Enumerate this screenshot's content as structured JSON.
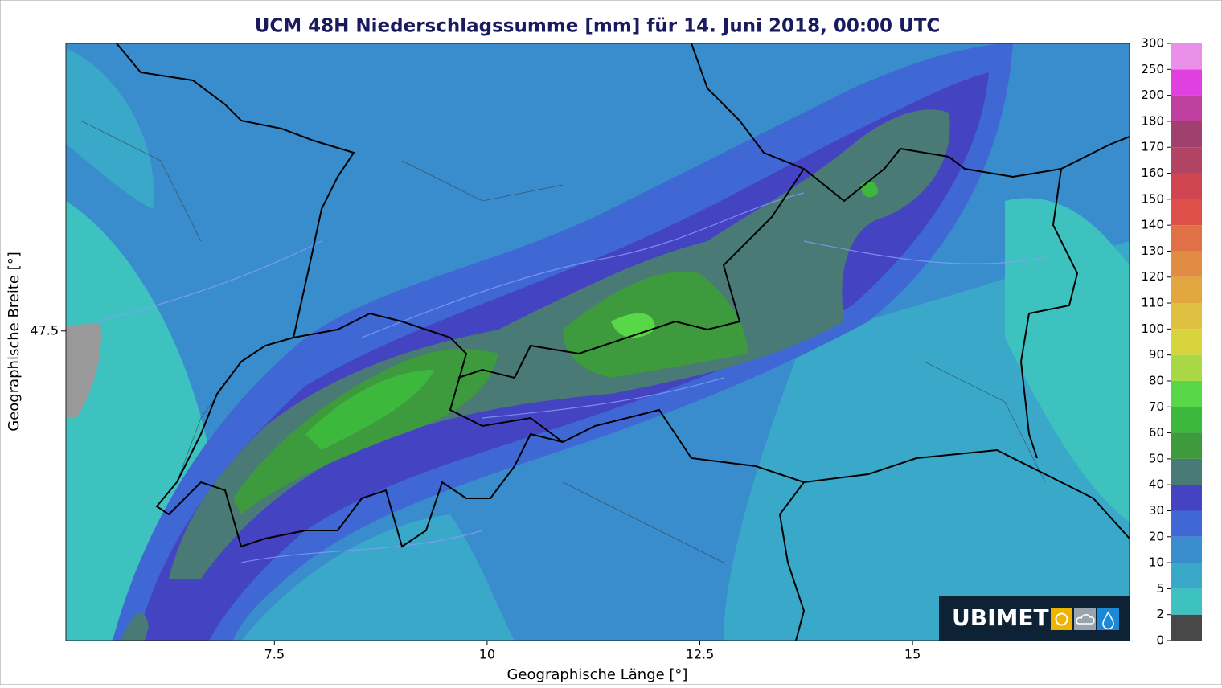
{
  "map": {
    "title": "UCM 48H Niederschlagssumme [mm] für 14. Juni 2018, 00:00 UTC",
    "xlabel": "Geographische Länge [°]",
    "ylabel": "Geographische Breite [°]",
    "xlim": [
      5.05,
      17.55
    ],
    "ylim": [
      43.85,
      50.89
    ],
    "xticks": [
      7.5,
      10,
      12.5,
      15
    ],
    "yticks": [
      47.5
    ]
  },
  "colorbar": {
    "levels": [
      0,
      2,
      5,
      10,
      20,
      30,
      40,
      50,
      60,
      70,
      80,
      90,
      100,
      110,
      120,
      130,
      140,
      150,
      160,
      170,
      180,
      200,
      250,
      300
    ],
    "colors": [
      "#484848",
      "#3ec2c0",
      "#3aa8c8",
      "#3a8dcc",
      "#3f68d4",
      "#4444c2",
      "#4a7a76",
      "#3d9a3d",
      "#3cb83c",
      "#58d848",
      "#a8d843",
      "#d8d43e",
      "#e0c040",
      "#e2a83f",
      "#e08c42",
      "#e07046",
      "#e0504a",
      "#d04450",
      "#b04462",
      "#a0406e",
      "#c040a0",
      "#e040e0",
      "#ea90ea",
      "#ececec"
    ]
  },
  "logo": {
    "text": "UBIMET"
  }
}
